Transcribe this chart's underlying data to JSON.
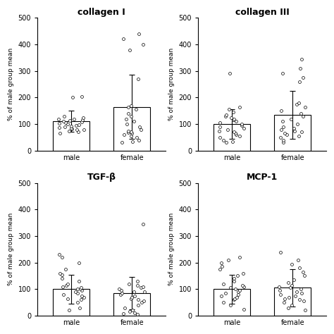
{
  "titles": [
    "collagen I",
    "collagen III",
    "TGF-β",
    "MCP-1"
  ],
  "ylabel": "% of male group mean",
  "xlabel_labels": [
    "male",
    "female"
  ],
  "ylim": [
    0,
    500
  ],
  "yticks": [
    0,
    100,
    200,
    300,
    400,
    500
  ],
  "bar_width": 0.6,
  "bar_color": "white",
  "bar_edgecolor": "black",
  "dot_color": "white",
  "dot_edgecolor": "black",
  "panels": [
    {
      "male_bar": 110,
      "male_sd": 40,
      "female_bar": 165,
      "female_sd": 120,
      "male_dots": [
        65,
        70,
        75,
        78,
        80,
        82,
        85,
        88,
        90,
        92,
        95,
        97,
        100,
        103,
        105,
        108,
        110,
        113,
        115,
        118,
        120,
        125,
        130,
        200,
        205
      ],
      "female_dots": [
        30,
        35,
        40,
        50,
        55,
        60,
        65,
        68,
        70,
        75,
        80,
        90,
        100,
        110,
        120,
        130,
        140,
        155,
        165,
        170,
        270,
        380,
        400,
        420,
        440
      ]
    },
    {
      "male_bar": 100,
      "male_sd": 55,
      "female_bar": 135,
      "female_sd": 90,
      "male_dots": [
        30,
        35,
        40,
        50,
        55,
        60,
        65,
        70,
        75,
        80,
        85,
        90,
        95,
        100,
        105,
        110,
        115,
        120,
        125,
        130,
        135,
        145,
        155,
        165,
        290
      ],
      "female_dots": [
        30,
        40,
        50,
        55,
        60,
        65,
        70,
        75,
        80,
        85,
        90,
        100,
        110,
        120,
        130,
        140,
        150,
        165,
        175,
        180,
        260,
        275,
        290,
        310,
        345
      ]
    },
    {
      "male_bar": 100,
      "male_sd": 55,
      "female_bar": 85,
      "female_sd": 60,
      "male_dots": [
        20,
        30,
        50,
        60,
        65,
        70,
        75,
        80,
        85,
        90,
        95,
        100,
        100,
        105,
        110,
        115,
        120,
        130,
        140,
        155,
        160,
        175,
        200,
        220,
        230
      ],
      "female_dots": [
        5,
        8,
        10,
        15,
        20,
        30,
        40,
        50,
        55,
        60,
        65,
        70,
        75,
        80,
        85,
        90,
        90,
        95,
        100,
        105,
        110,
        115,
        120,
        130,
        345
      ]
    },
    {
      "male_bar": 100,
      "male_sd": 55,
      "female_bar": 105,
      "female_sd": 70,
      "male_dots": [
        25,
        40,
        50,
        60,
        65,
        70,
        75,
        80,
        85,
        90,
        95,
        100,
        105,
        110,
        115,
        120,
        130,
        140,
        150,
        160,
        175,
        185,
        200,
        210,
        220
      ],
      "female_dots": [
        20,
        30,
        40,
        50,
        55,
        60,
        65,
        70,
        75,
        80,
        85,
        90,
        95,
        100,
        105,
        110,
        115,
        125,
        135,
        150,
        165,
        180,
        195,
        210,
        240
      ]
    }
  ],
  "title_fontsize": 9,
  "axis_fontsize": 6.5,
  "tick_fontsize": 7,
  "title_fontweight": "bold",
  "figsize": [
    4.74,
    4.74
  ],
  "dpi": 100
}
